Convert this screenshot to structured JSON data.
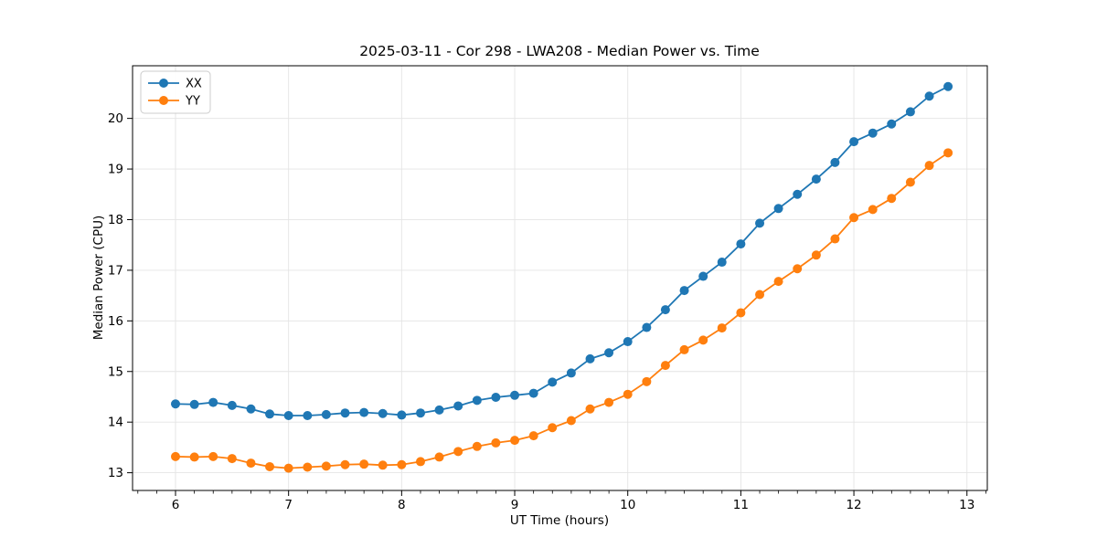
{
  "title": "2025-03-11 - Cor 298 - LWA208 - Median Power vs. Time",
  "chart_data": {
    "type": "line",
    "title": "2025-03-11 - Cor 298 - LWA208 - Median Power vs. Time",
    "xlabel": "UT Time (hours)",
    "ylabel": "Median Power (CPU)",
    "grid": true,
    "legend_position": "upper-left",
    "marker": "circle",
    "background_color": "#ffffff",
    "grid_color": "#e4e4e4",
    "spine_color": "#000000",
    "xlim": [
      5.62,
      13.18
    ],
    "ylim": [
      12.65,
      21.04
    ],
    "xticks": [
      6,
      7,
      8,
      9,
      10,
      11,
      12,
      13
    ],
    "yticks": [
      13,
      14,
      15,
      16,
      17,
      18,
      19,
      20
    ],
    "minor_xtick_step": 0.16667,
    "x": [
      6.0,
      6.167,
      6.333,
      6.5,
      6.667,
      6.833,
      7.0,
      7.167,
      7.333,
      7.5,
      7.667,
      7.833,
      8.0,
      8.167,
      8.333,
      8.5,
      8.667,
      8.833,
      9.0,
      9.167,
      9.333,
      9.5,
      9.667,
      9.833,
      10.0,
      10.167,
      10.333,
      10.5,
      10.667,
      10.833,
      11.0,
      11.167,
      11.333,
      11.5,
      11.667,
      11.833,
      12.0,
      12.167,
      12.333,
      12.5,
      12.667,
      12.833
    ],
    "series": [
      {
        "name": "XX",
        "color": "#1f77b4",
        "values": [
          14.36,
          14.35,
          14.39,
          14.33,
          14.26,
          14.16,
          14.13,
          14.13,
          14.15,
          14.18,
          14.19,
          14.17,
          14.14,
          14.18,
          14.24,
          14.32,
          14.43,
          14.49,
          14.53,
          14.57,
          14.79,
          14.97,
          15.25,
          15.37,
          15.59,
          15.87,
          16.22,
          16.6,
          16.88,
          17.16,
          17.52,
          17.93,
          18.22,
          18.5,
          18.8,
          19.13,
          19.54,
          19.71,
          19.89,
          20.13,
          20.44,
          20.63
        ]
      },
      {
        "name": "YY",
        "color": "#ff7f0e",
        "values": [
          13.32,
          13.31,
          13.32,
          13.28,
          13.19,
          13.12,
          13.09,
          13.11,
          13.13,
          13.16,
          13.17,
          13.15,
          13.16,
          13.22,
          13.31,
          13.42,
          13.52,
          13.59,
          13.64,
          13.73,
          13.89,
          14.03,
          14.26,
          14.39,
          14.55,
          14.8,
          15.12,
          15.43,
          15.62,
          15.86,
          16.16,
          16.52,
          16.78,
          17.03,
          17.3,
          17.62,
          18.04,
          18.2,
          18.42,
          18.74,
          19.07,
          19.32
        ]
      }
    ]
  }
}
